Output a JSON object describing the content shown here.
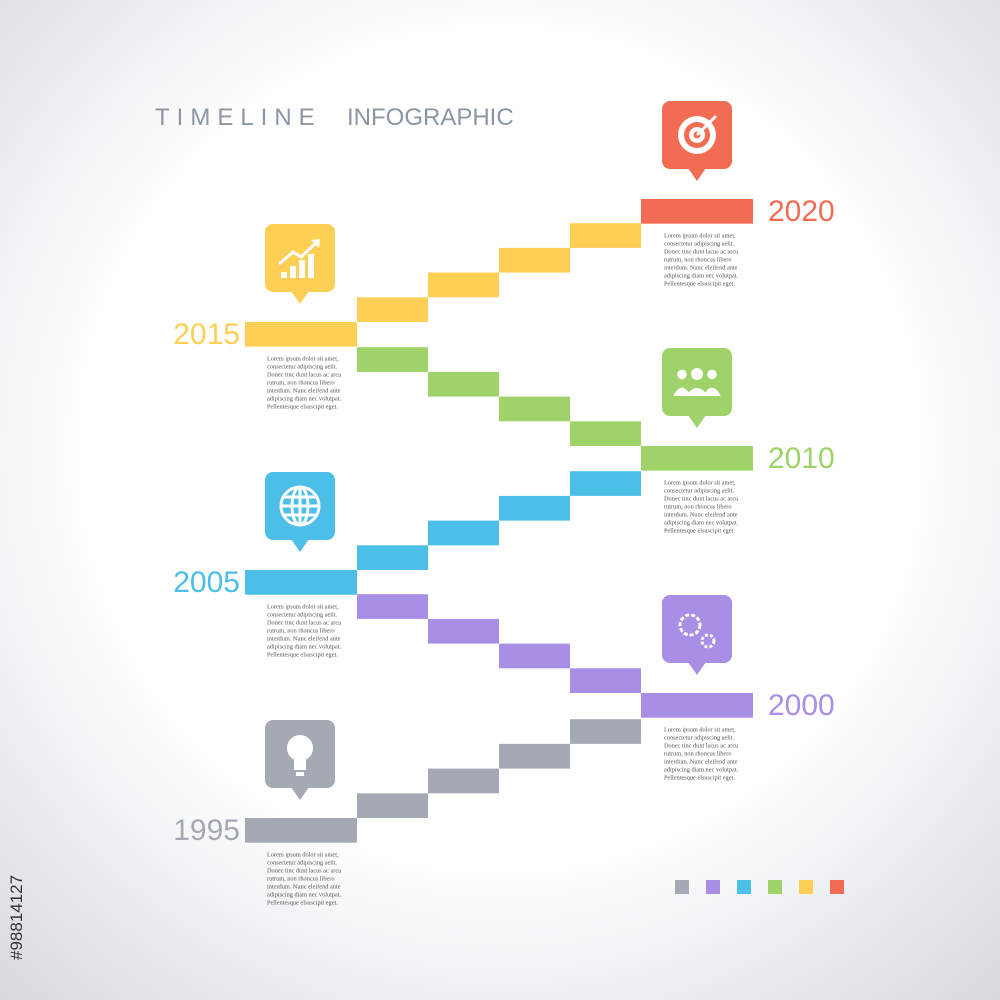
{
  "header": {
    "title_light": "TIMELINE",
    "title_bold": "INFOGRAPHIC"
  },
  "milestones": [
    {
      "year": "1995",
      "text": [
        "Lorem ipsum dolor sit amet,",
        "consectetur adipiscing aelit.",
        "Donec tinc dunt lacus ac arcu",
        "rutrum, non rhoncus libero",
        "interdum. Nunc eleifend ante",
        "adipiscing diam nec volutpat.",
        "Pellentesque elsuscipit eget."
      ]
    },
    {
      "year": "2000",
      "text": [
        "Lorem ipsum dolor sit amet,",
        "consectetur adipiscing aelit.",
        "Donec tinc dunt lacus ac arcu",
        "rutrum, non rhoncus libero",
        "interdum. Nunc eleifend ante",
        "adipiscing diam nec volutpat.",
        "Pellentesque elsuscipit eget."
      ]
    },
    {
      "year": "2005",
      "text": [
        "Lorem ipsum dolor sit amet,",
        "consectetur adipiscing aelit.",
        "Donec tinc dunt lacus ac arcu",
        "rutrum, non rhoncus libero",
        "interdum. Nunc eleifend ante",
        "adipiscing diam nec volutpat.",
        "Pellentesque elsuscipit eget."
      ]
    },
    {
      "year": "2010",
      "text": [
        "Lorem ipsum dolor sit amet,",
        "consectetur adipiscing aelit.",
        "Donec tinc dunt lacus ac arcu",
        "rutrum, non rhoncus libero",
        "interdum. Nunc eleifend ante",
        "adipiscing diam nec volutpat.",
        "Pellentesque elsuscipit eget."
      ]
    },
    {
      "year": "2015",
      "text": [
        "Lorem ipsum dolor sit amet,",
        "consectetur adipiscing aelit.",
        "Donec tinc dunt lacus ac arcu",
        "rutrum, non rhoncus libero",
        "interdum. Nunc eleifend ante",
        "adipiscing diam nec volutpat.",
        "Pellentesque elsuscipit eget."
      ]
    },
    {
      "year": "2020",
      "text": [
        "Lorem ipsum dolor sit amet,",
        "consectetur adipiscing aelit.",
        "Donec tinc dunt lacus ac arcu",
        "rutrum, non rhoncus libero",
        "interdum. Nunc eleifend ante",
        "adipiscing diam nec volutpat.",
        "Pellentesque elsuscipit eget."
      ]
    }
  ],
  "side_label": "#98814127"
}
